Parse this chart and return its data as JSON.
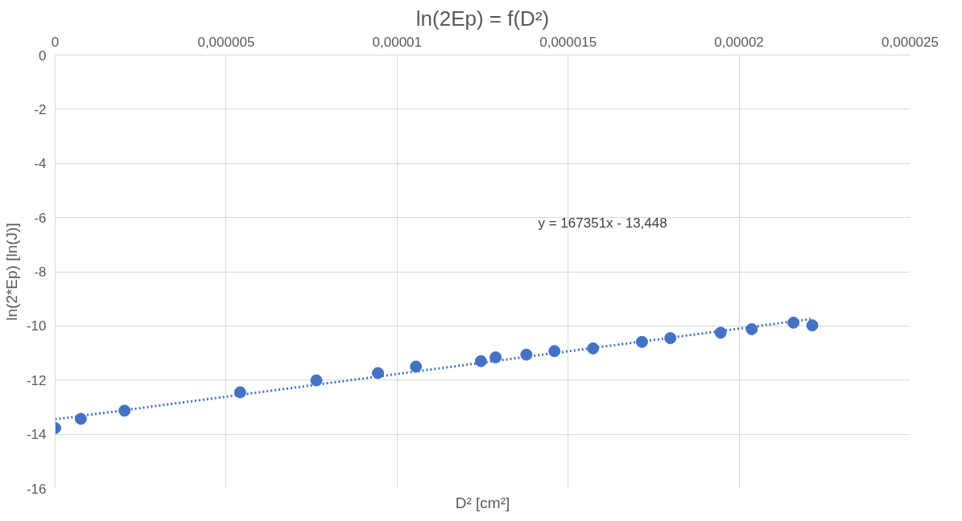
{
  "chart_data": {
    "type": "scatter",
    "title": "ln(2Ep) = f(D²)",
    "xlabel": "D² [cm²]",
    "ylabel": "ln(2*Ep) [ln(J)]",
    "xlim": [
      0,
      2.5e-05
    ],
    "ylim": [
      -16,
      0
    ],
    "xticks": [
      0,
      {
        "value": 5e-06,
        "label": "0,000005"
      },
      {
        "value": 1e-05,
        "label": "0,00001"
      },
      {
        "value": 1.5e-05,
        "label": "0,000015"
      },
      {
        "value": 2e-05,
        "label": "0,00002"
      },
      {
        "value": 2.5e-05,
        "label": "0,000025"
      }
    ],
    "yticks": [
      0,
      -2,
      -4,
      -6,
      -8,
      -10,
      -12,
      -14,
      -16
    ],
    "grid": true,
    "annotations": [
      "y = 167351x - 13,448"
    ],
    "series": [
      {
        "color": "#4472c4",
        "marker": "circle",
        "x": [
          0,
          7.5e-07,
          2.03e-06,
          5.41e-06,
          7.64e-06,
          9.44e-06,
          1.055e-05,
          1.245e-05,
          1.288e-05,
          1.378e-05,
          1.46e-05,
          1.573e-05,
          1.716e-05,
          1.799e-05,
          1.946e-05,
          2.037e-05,
          2.159e-05,
          2.214e-05
        ],
        "values": [
          -13.77,
          -13.43,
          -13.13,
          -12.45,
          -12.01,
          -11.74,
          -11.5,
          -11.3,
          -11.16,
          -11.06,
          -10.93,
          -10.83,
          -10.59,
          -10.45,
          -10.25,
          -10.12,
          -9.88,
          -9.98
        ]
      },
      {
        "type": "line",
        "color": "#4472c4",
        "marker": "none",
        "line_style": "dotted",
        "x": [
          0,
          2.214e-05
        ],
        "values": [
          -13.45,
          -9.74
        ]
      }
    ]
  }
}
